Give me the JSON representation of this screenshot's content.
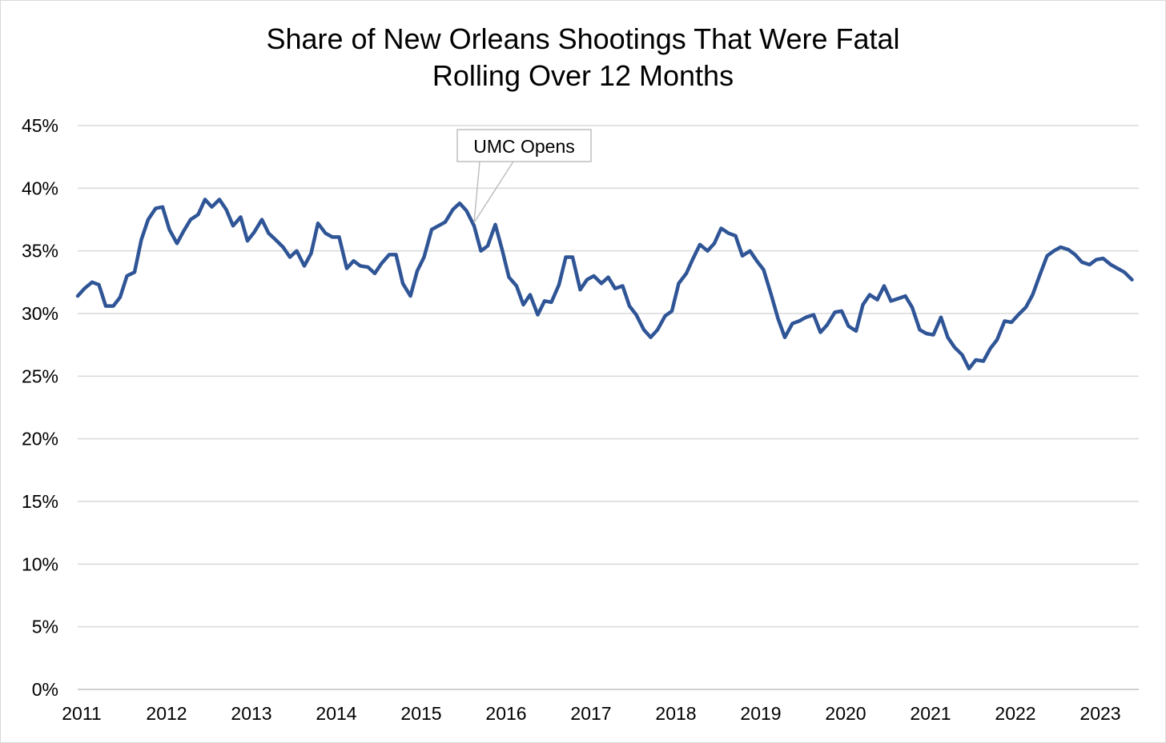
{
  "chart_data": {
    "type": "line",
    "title": "Share of New Orleans Shootings That Were Fatal",
    "subtitle": "Rolling Over 12 Months",
    "xlabel": "",
    "ylabel": "",
    "ylim": [
      0,
      45
    ],
    "yticks": [
      "0%",
      "5%",
      "10%",
      "15%",
      "20%",
      "25%",
      "30%",
      "35%",
      "40%",
      "45%"
    ],
    "xticks": [
      "2011",
      "2012",
      "2013",
      "2014",
      "2015",
      "2016",
      "2017",
      "2018",
      "2019",
      "2020",
      "2021",
      "2022",
      "2023"
    ],
    "grid": true,
    "legend": "none",
    "line_color": "#2f5597",
    "annotation": {
      "text": "UMC Opens",
      "x": 2015.67,
      "y": 37.0
    },
    "series": [
      {
        "name": "",
        "x": [
          2011.0,
          2011.08,
          2011.17,
          2011.25,
          2011.33,
          2011.42,
          2011.5,
          2011.58,
          2011.67,
          2011.75,
          2011.83,
          2011.92,
          2012.0,
          2012.08,
          2012.17,
          2012.25,
          2012.33,
          2012.42,
          2012.5,
          2012.58,
          2012.67,
          2012.75,
          2012.83,
          2012.92,
          2013.0,
          2013.08,
          2013.17,
          2013.25,
          2013.33,
          2013.42,
          2013.5,
          2013.58,
          2013.67,
          2013.75,
          2013.83,
          2013.92,
          2014.0,
          2014.08,
          2014.17,
          2014.25,
          2014.33,
          2014.42,
          2014.5,
          2014.58,
          2014.67,
          2014.75,
          2014.83,
          2014.92,
          2015.0,
          2015.08,
          2015.17,
          2015.25,
          2015.33,
          2015.42,
          2015.5,
          2015.58,
          2015.67,
          2015.75,
          2015.83,
          2015.92,
          2016.0,
          2016.08,
          2016.17,
          2016.25,
          2016.33,
          2016.42,
          2016.5,
          2016.58,
          2016.67,
          2016.75,
          2016.83,
          2016.92,
          2017.0,
          2017.08,
          2017.17,
          2017.25,
          2017.33,
          2017.42,
          2017.5,
          2017.58,
          2017.67,
          2017.75,
          2017.83,
          2017.92,
          2018.0,
          2018.08,
          2018.17,
          2018.25,
          2018.33,
          2018.42,
          2018.5,
          2018.58,
          2018.67,
          2018.75,
          2018.83,
          2018.92,
          2019.0,
          2019.08,
          2019.17,
          2019.25,
          2019.33,
          2019.42,
          2019.5,
          2019.58,
          2019.67,
          2019.75,
          2019.83,
          2019.92,
          2020.0,
          2020.08,
          2020.17,
          2020.25,
          2020.33,
          2020.42,
          2020.5,
          2020.58,
          2020.67,
          2020.75,
          2020.83,
          2020.92,
          2021.0,
          2021.08,
          2021.17,
          2021.25,
          2021.33,
          2021.42,
          2021.5,
          2021.58,
          2021.67,
          2021.75,
          2021.83,
          2021.92,
          2022.0,
          2022.08,
          2022.17,
          2022.25,
          2022.33,
          2022.42,
          2022.5,
          2022.58,
          2022.67,
          2022.75,
          2022.83,
          2022.92,
          2023.0,
          2023.08,
          2023.17,
          2023.25,
          2023.33,
          2023.42
        ],
        "values": [
          31.4,
          32.0,
          32.5,
          32.3,
          30.6,
          30.6,
          31.3,
          33.0,
          33.3,
          35.9,
          37.5,
          38.4,
          38.5,
          36.7,
          35.6,
          36.6,
          37.5,
          37.9,
          39.1,
          38.5,
          39.1,
          38.3,
          37.0,
          37.7,
          35.8,
          36.5,
          37.5,
          36.4,
          35.9,
          35.3,
          34.5,
          35.0,
          33.8,
          34.8,
          37.2,
          36.4,
          36.1,
          36.1,
          33.6,
          34.2,
          33.8,
          33.7,
          33.2,
          34.0,
          34.7,
          34.7,
          32.4,
          31.4,
          33.4,
          34.5,
          36.7,
          37.0,
          37.3,
          38.3,
          38.8,
          38.2,
          37.0,
          35.0,
          35.4,
          37.1,
          35.1,
          32.9,
          32.2,
          30.7,
          31.5,
          29.9,
          31.0,
          30.9,
          32.3,
          34.5,
          34.5,
          31.9,
          32.7,
          33.0,
          32.4,
          32.9,
          32.0,
          32.2,
          30.6,
          29.9,
          28.7,
          28.1,
          28.7,
          29.8,
          30.2,
          32.4,
          33.2,
          34.4,
          35.5,
          35.0,
          35.6,
          36.8,
          36.4,
          36.2,
          34.6,
          35.0,
          34.2,
          33.5,
          31.5,
          29.6,
          28.1,
          29.2,
          29.4,
          29.7,
          29.9,
          28.5,
          29.1,
          30.1,
          30.2,
          29.0,
          28.6,
          30.7,
          31.5,
          31.1,
          32.2,
          31.0,
          31.2,
          31.4,
          30.5,
          28.7,
          28.4,
          28.3,
          29.7,
          28.1,
          27.3,
          26.7,
          25.6,
          26.3,
          26.2,
          27.2,
          27.9,
          29.4,
          29.3,
          29.9,
          30.5,
          31.5,
          33.0,
          34.6,
          35.0,
          35.3,
          35.1,
          34.7,
          34.1,
          33.9,
          34.3,
          34.4,
          33.9,
          33.6,
          33.3,
          32.7
        ]
      }
    ]
  }
}
